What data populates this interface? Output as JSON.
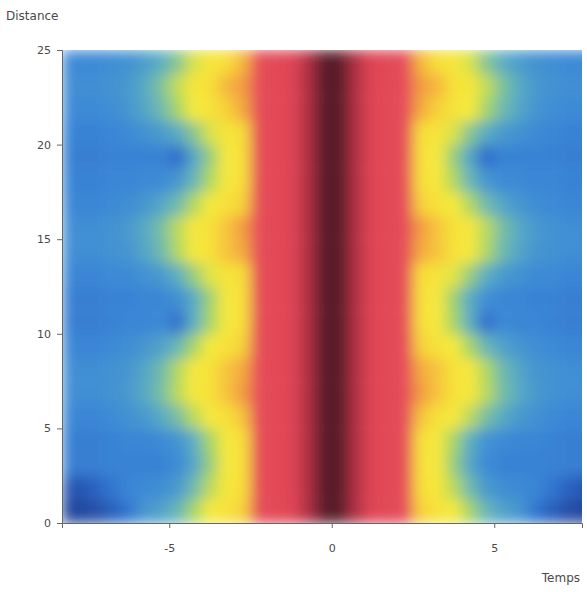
{
  "chart_data": {
    "type": "heatmap",
    "x_label": "Temps",
    "y_label": "Distance",
    "xlim": [
      -8.3,
      7.7
    ],
    "ylim": [
      0,
      25
    ],
    "xticks": [
      -5,
      0,
      5
    ],
    "yticks": [
      0,
      5,
      10,
      15,
      20,
      25
    ],
    "zlim": [
      0,
      10
    ],
    "x_bins": [
      -8.3,
      -7.5,
      -7,
      -6.5,
      -6,
      -5.5,
      -5,
      -4.5,
      -4,
      -3.5,
      -3,
      -2.5,
      -2,
      -1.5,
      -1,
      -0.5,
      0,
      0.5,
      1,
      1.5,
      2,
      2.5,
      3,
      3.5,
      4,
      4.5,
      5,
      5.5,
      6,
      6.5,
      7,
      7.5,
      8.3
    ],
    "y_bins": [
      0,
      1.25,
      2.5,
      3.75,
      5,
      6.25,
      7.5,
      8.75,
      10,
      11.25,
      12.5,
      13.75,
      15,
      16.25,
      17.5,
      18.75,
      20,
      21.25,
      22.5,
      23.75,
      25
    ],
    "z": [
      [
        0.6,
        0.8,
        1.2,
        1.8,
        2.6,
        2.9,
        3.4,
        4.2,
        5.0,
        5.8,
        6.3,
        7.4,
        7.9,
        8.3,
        9.2,
        10,
        10,
        9.2,
        8.3,
        7.9,
        7.4,
        6.3,
        5.8,
        5.0,
        4.2,
        3.4,
        2.9,
        2.6,
        1.8,
        1.2,
        0.8,
        0.6
      ],
      [
        1.0,
        1.3,
        1.8,
        2.2,
        2.3,
        2.4,
        2.7,
        3.5,
        4.4,
        5.4,
        6.1,
        7.4,
        7.9,
        8.3,
        9.2,
        10,
        10,
        9.2,
        8.3,
        7.9,
        7.4,
        6.1,
        5.4,
        4.4,
        3.5,
        2.7,
        2.4,
        2.3,
        2.2,
        1.8,
        1.3,
        1.0
      ],
      [
        2.0,
        2.0,
        2.1,
        2.1,
        2.1,
        2.1,
        2.3,
        3.0,
        4.0,
        5.1,
        5.9,
        7.4,
        7.9,
        8.3,
        9.2,
        10,
        10,
        9.2,
        8.3,
        7.9,
        7.4,
        5.9,
        5.1,
        4.0,
        3.0,
        2.3,
        2.1,
        2.1,
        2.1,
        2.1,
        2.0,
        2.0
      ],
      [
        2.0,
        2.0,
        2.1,
        2.2,
        2.2,
        2.3,
        2.5,
        3.2,
        4.2,
        5.2,
        6.0,
        7.4,
        7.9,
        8.3,
        9.2,
        10,
        10,
        9.2,
        8.3,
        7.9,
        7.4,
        6.0,
        5.2,
        4.2,
        3.2,
        2.5,
        2.3,
        2.2,
        2.2,
        2.1,
        2.0,
        2.0
      ],
      [
        2.2,
        2.2,
        2.3,
        2.5,
        2.7,
        3.1,
        3.6,
        4.4,
        5.2,
        5.9,
        6.4,
        7.4,
        7.9,
        8.3,
        9.2,
        10,
        10,
        9.2,
        8.3,
        7.9,
        7.4,
        6.4,
        5.9,
        5.2,
        4.4,
        3.6,
        3.1,
        2.7,
        2.5,
        2.3,
        2.2,
        2.2
      ],
      [
        2.4,
        2.4,
        2.5,
        2.7,
        3.1,
        3.6,
        4.4,
        5.3,
        5.9,
        6.4,
        6.7,
        7.4,
        7.9,
        8.3,
        9.2,
        10,
        10,
        9.2,
        8.3,
        7.9,
        7.4,
        6.7,
        6.4,
        5.9,
        5.3,
        4.4,
        3.6,
        3.1,
        2.7,
        2.5,
        2.4,
        2.4
      ],
      [
        2.4,
        2.4,
        2.5,
        2.6,
        3.0,
        3.5,
        4.3,
        5.2,
        5.8,
        6.4,
        6.6,
        7.4,
        7.9,
        8.3,
        9.2,
        10,
        10,
        9.2,
        8.3,
        7.9,
        7.4,
        6.6,
        6.4,
        5.8,
        5.2,
        4.3,
        3.5,
        3.0,
        2.6,
        2.5,
        2.4,
        2.4
      ],
      [
        2.2,
        2.2,
        2.3,
        2.4,
        2.6,
        2.9,
        3.4,
        4.2,
        5.0,
        5.8,
        6.3,
        7.4,
        7.9,
        8.3,
        9.2,
        10,
        10,
        9.2,
        8.3,
        7.9,
        7.4,
        6.3,
        5.8,
        5.0,
        4.2,
        3.4,
        2.9,
        2.6,
        2.4,
        2.3,
        2.2,
        2.2
      ],
      [
        2.0,
        2.0,
        2.1,
        2.2,
        2.2,
        2.3,
        1.6,
        3.2,
        4.2,
        5.2,
        6.0,
        7.4,
        7.9,
        8.3,
        9.2,
        10,
        10,
        9.2,
        8.3,
        7.9,
        7.4,
        6.0,
        5.2,
        4.2,
        3.2,
        1.6,
        2.3,
        2.2,
        2.2,
        2.1,
        2.0,
        2.0
      ],
      [
        2.0,
        2.0,
        2.1,
        2.1,
        2.2,
        2.2,
        2.4,
        3.1,
        4.1,
        5.2,
        5.9,
        7.4,
        7.9,
        8.3,
        9.2,
        10,
        10,
        9.2,
        8.3,
        7.9,
        7.4,
        5.9,
        5.2,
        4.1,
        3.1,
        2.4,
        2.2,
        2.2,
        2.1,
        2.1,
        2.0,
        2.0
      ],
      [
        2.2,
        2.2,
        2.3,
        2.3,
        2.5,
        2.7,
        3.2,
        4.0,
        4.8,
        5.7,
        6.2,
        7.4,
        7.9,
        8.3,
        9.2,
        10,
        10,
        9.2,
        8.3,
        7.9,
        7.4,
        6.2,
        5.7,
        4.8,
        4.0,
        3.2,
        2.7,
        2.5,
        2.3,
        2.3,
        2.2,
        2.2
      ],
      [
        2.4,
        2.4,
        2.5,
        2.6,
        3.0,
        3.5,
        4.3,
        5.2,
        5.8,
        6.4,
        6.6,
        7.4,
        7.9,
        8.3,
        9.2,
        10,
        10,
        9.2,
        8.3,
        7.9,
        7.4,
        6.6,
        6.4,
        5.8,
        5.2,
        4.3,
        3.5,
        3.0,
        2.6,
        2.5,
        2.4,
        2.4
      ],
      [
        2.4,
        2.4,
        2.5,
        2.7,
        3.1,
        3.6,
        4.4,
        5.3,
        5.9,
        6.4,
        6.7,
        7.4,
        7.9,
        8.3,
        9.2,
        10,
        10,
        9.2,
        8.3,
        7.9,
        7.4,
        6.7,
        6.4,
        5.9,
        5.3,
        4.4,
        3.6,
        3.1,
        2.7,
        2.5,
        2.4,
        2.4
      ],
      [
        2.2,
        2.2,
        2.3,
        2.4,
        2.6,
        3.0,
        3.5,
        4.3,
        5.1,
        5.9,
        6.3,
        7.4,
        7.9,
        8.3,
        9.2,
        10,
        10,
        9.2,
        8.3,
        7.9,
        7.4,
        6.3,
        5.9,
        5.1,
        4.3,
        3.5,
        3.0,
        2.6,
        2.4,
        2.3,
        2.2,
        2.2
      ],
      [
        2.1,
        2.1,
        2.2,
        2.2,
        2.3,
        2.3,
        2.6,
        3.4,
        4.3,
        5.3,
        6.0,
        7.4,
        7.9,
        8.3,
        9.2,
        10,
        10,
        9.2,
        8.3,
        7.9,
        7.4,
        6.0,
        5.3,
        4.3,
        3.4,
        2.6,
        2.3,
        2.3,
        2.2,
        2.2,
        2.1,
        2.1
      ],
      [
        2.0,
        2.0,
        2.1,
        2.1,
        2.1,
        2.1,
        1.5,
        3.0,
        4.0,
        5.1,
        5.9,
        7.4,
        7.9,
        8.3,
        9.2,
        10,
        10,
        9.2,
        8.3,
        7.9,
        7.4,
        5.9,
        5.1,
        4.0,
        3.0,
        1.5,
        2.1,
        2.1,
        2.1,
        2.1,
        2.0,
        2.0
      ],
      [
        2.1,
        2.1,
        2.2,
        2.3,
        2.5,
        2.7,
        3.1,
        3.8,
        4.7,
        5.6,
        6.2,
        7.4,
        7.9,
        8.3,
        9.2,
        10,
        10,
        9.2,
        8.3,
        7.9,
        7.4,
        6.2,
        5.6,
        4.7,
        3.8,
        3.1,
        2.7,
        2.5,
        2.3,
        2.2,
        2.1,
        2.1
      ],
      [
        2.3,
        2.3,
        2.4,
        2.6,
        3.0,
        3.5,
        4.2,
        5.0,
        5.7,
        6.3,
        6.6,
        7.4,
        7.9,
        8.3,
        9.2,
        10,
        10,
        9.2,
        8.3,
        7.9,
        7.4,
        6.6,
        6.3,
        5.7,
        5.0,
        4.2,
        3.5,
        3.0,
        2.6,
        2.4,
        2.3,
        2.3
      ],
      [
        2.4,
        2.4,
        2.5,
        2.7,
        3.1,
        3.7,
        4.5,
        5.4,
        6.0,
        6.5,
        6.7,
        7.4,
        7.9,
        8.3,
        9.2,
        10,
        10,
        9.2,
        8.3,
        7.9,
        7.4,
        6.7,
        6.5,
        6.0,
        5.4,
        4.5,
        3.7,
        3.1,
        2.7,
        2.5,
        2.4,
        2.4
      ],
      [
        2.3,
        2.3,
        2.4,
        2.5,
        2.8,
        3.2,
        3.8,
        4.7,
        5.4,
        6.1,
        6.5,
        7.4,
        7.9,
        8.3,
        9.2,
        10,
        10,
        9.2,
        8.3,
        7.9,
        7.4,
        6.5,
        6.1,
        5.4,
        4.7,
        3.8,
        3.2,
        2.8,
        2.5,
        2.4,
        2.3,
        2.3
      ]
    ]
  }
}
